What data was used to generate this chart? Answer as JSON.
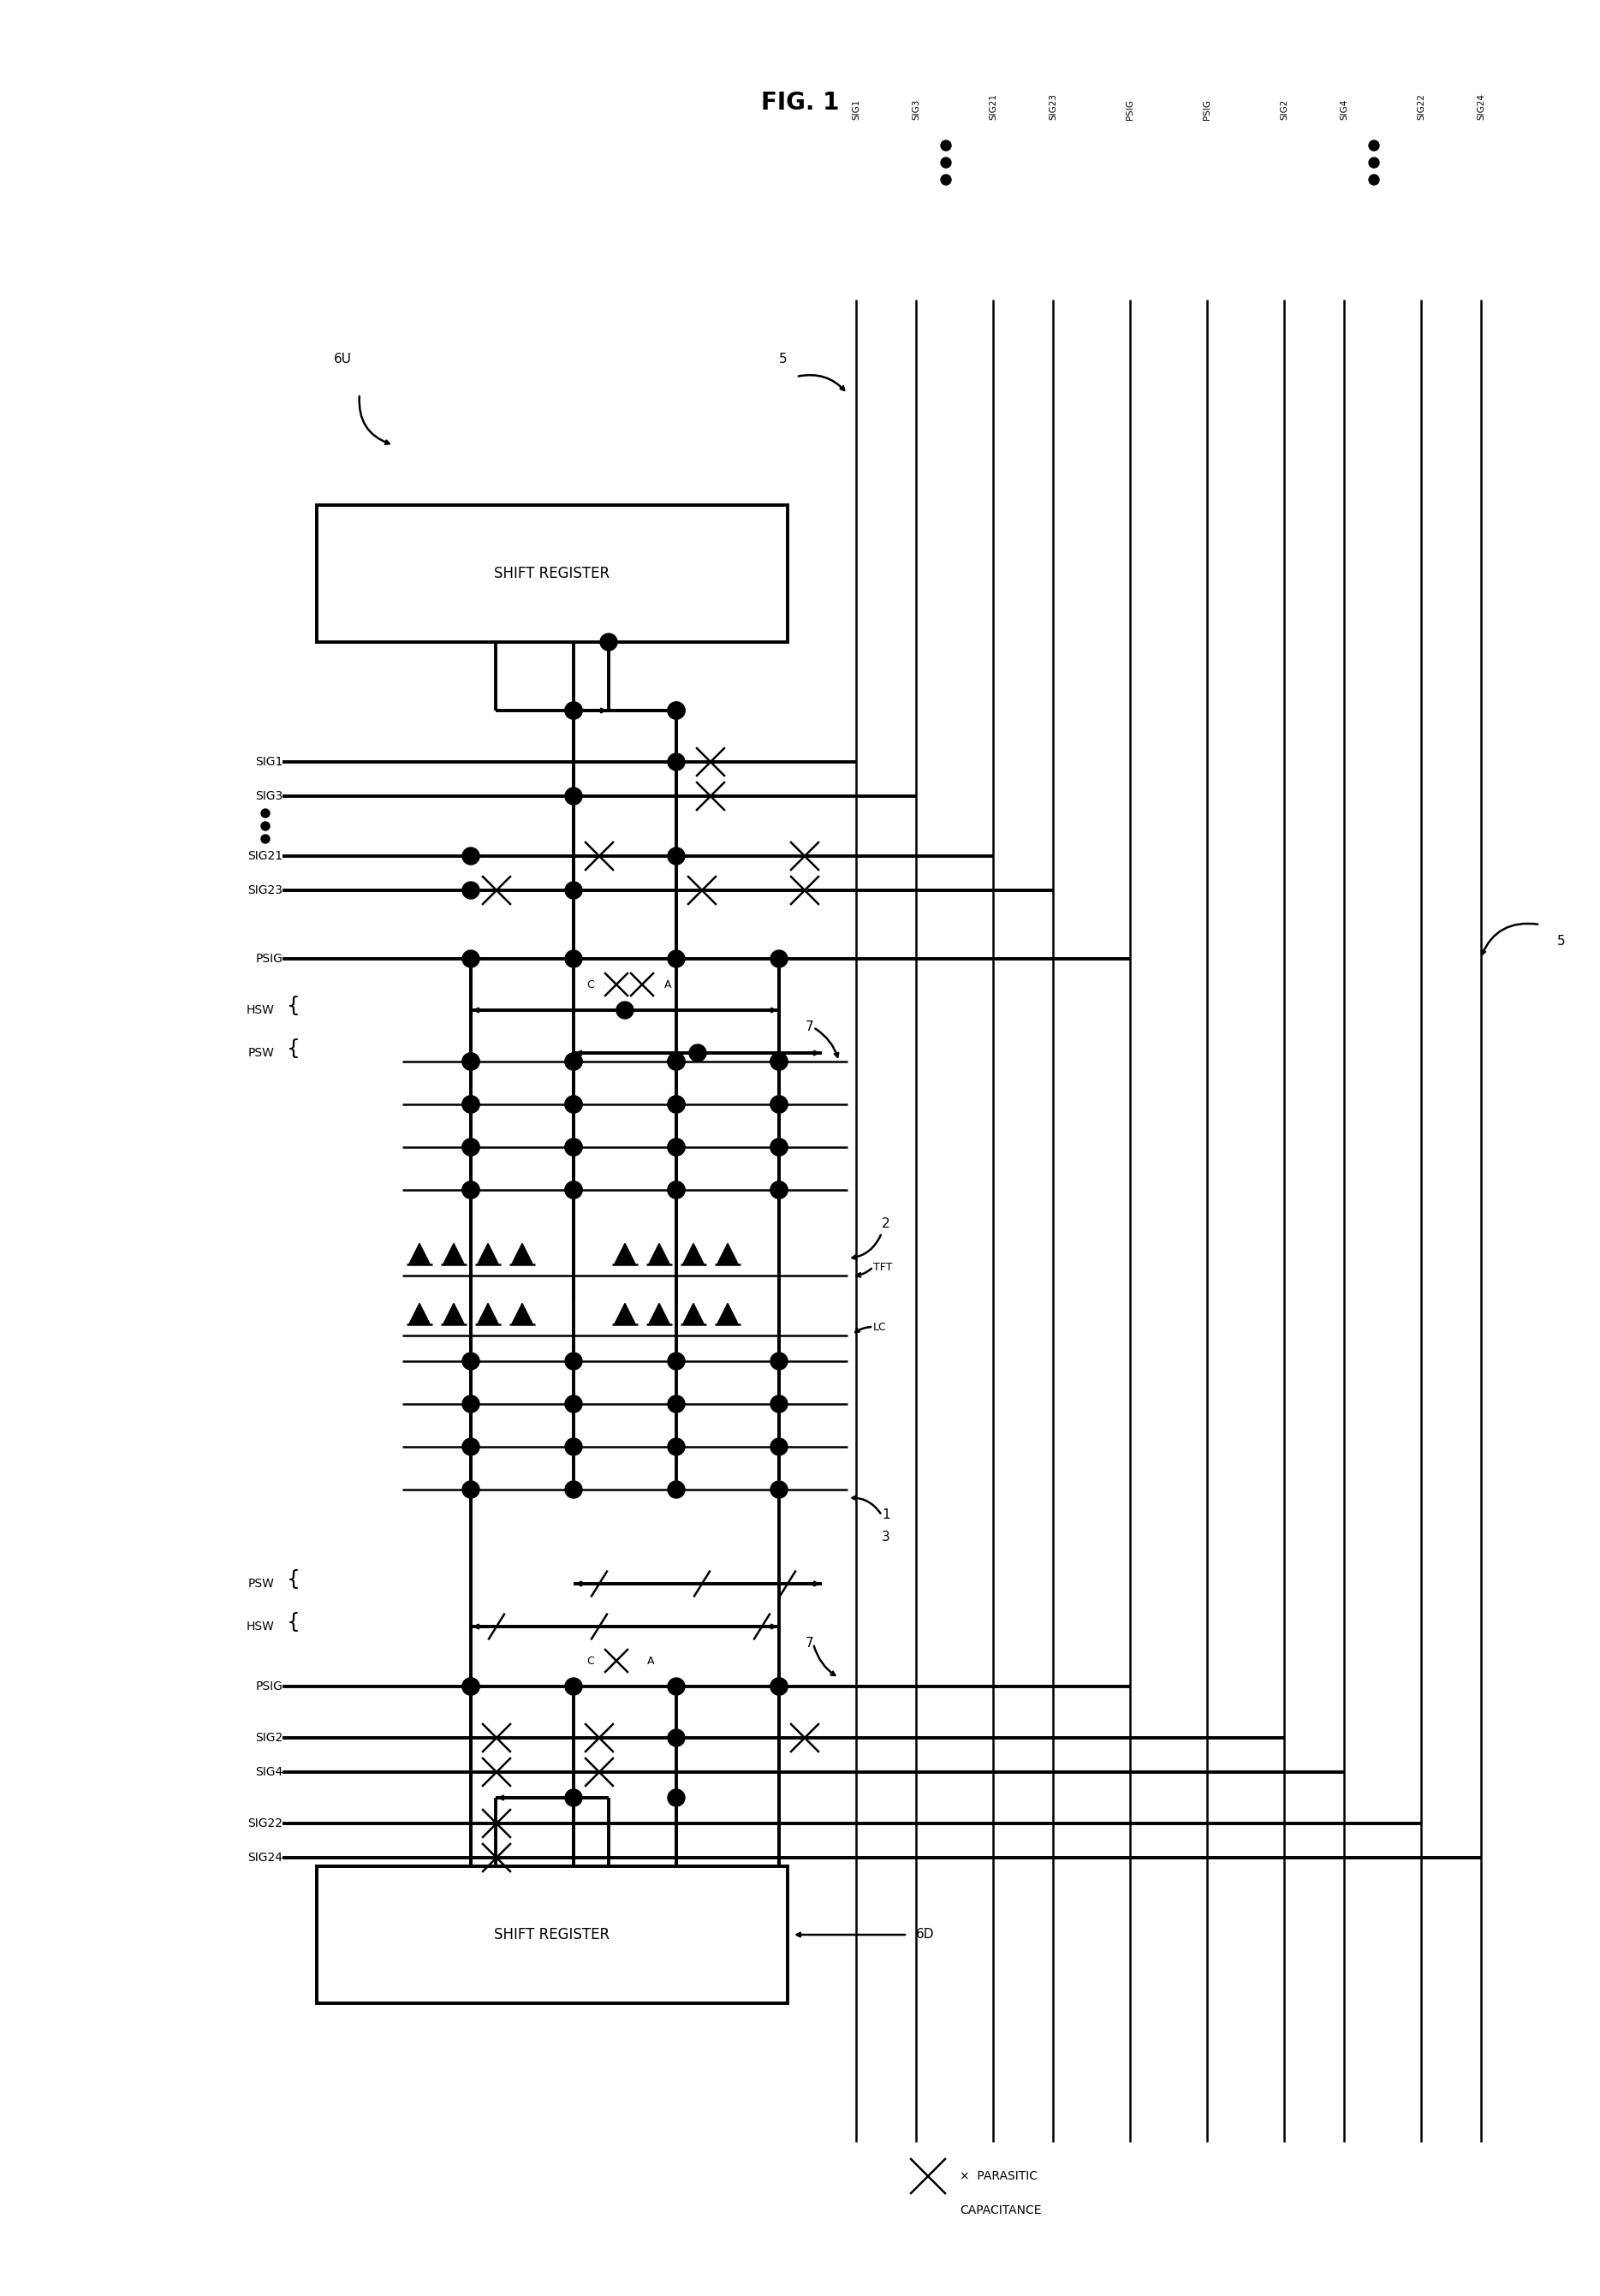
{
  "title": "FIG. 1",
  "bg": "#ffffff",
  "fw": 18.69,
  "fh": 26.82,
  "dpi": 100,
  "lw": 1.8,
  "lwt": 2.8,
  "top_signals": [
    "SIG1",
    "SIG3",
    "SIG21",
    "SIG23",
    "PSIG",
    "PSIG",
    "SIG2",
    "SIG4",
    "SIG22",
    "SIG24"
  ],
  "note_text1": "×  PARASITIC",
  "note_text2": "    CAPACITANCE"
}
